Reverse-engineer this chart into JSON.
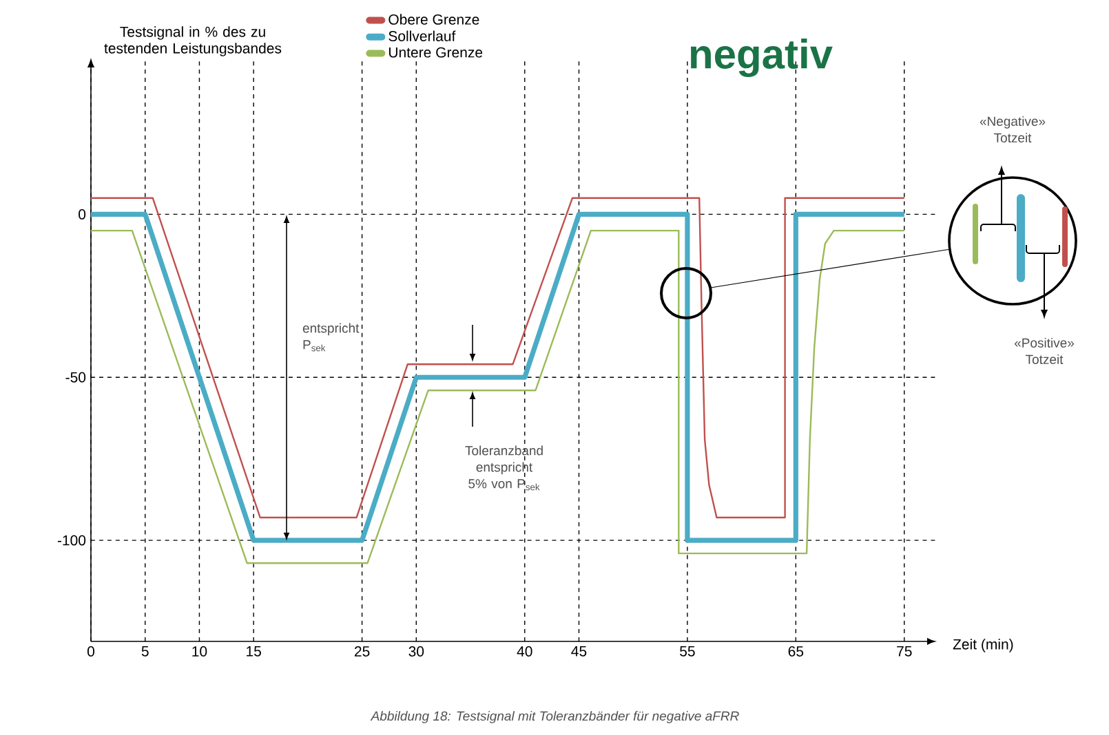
{
  "chart_data": {
    "type": "line",
    "title": "negativ",
    "xlabel": "Zeit (min)",
    "ylabel": "Testsignal in % des zu testenden Leistungsbandes",
    "xlim": [
      0,
      78
    ],
    "ylim": [
      -131,
      48
    ],
    "xticks": [
      0,
      5,
      10,
      15,
      25,
      30,
      40,
      45,
      55,
      65,
      75
    ],
    "yticks": [
      0,
      -50,
      -100
    ],
    "grid": true,
    "legend": "top",
    "series": [
      {
        "name": "Obere Grenze",
        "color": "#c0504d",
        "x": [
          0,
          5.7,
          15.6,
          24.5,
          29.2,
          38.9,
          44.4,
          56.1,
          56.3,
          56.6,
          57.0,
          57.7,
          64.0,
          64.0,
          75
        ],
        "values": [
          5,
          5,
          -93,
          -93,
          -46,
          -46,
          5,
          5,
          -27,
          -69,
          -83,
          -93,
          -93,
          5,
          5
        ]
      },
      {
        "name": "Sollverlauf",
        "color": "#4bacc6",
        "x": [
          0,
          5,
          15,
          25,
          30,
          40,
          45,
          55,
          55,
          65,
          65,
          75
        ],
        "values": [
          0,
          0,
          -100,
          -100,
          -50,
          -50,
          0,
          0,
          -100,
          -100,
          0,
          0
        ]
      },
      {
        "name": "Untere Grenze",
        "color": "#9bbb59",
        "x": [
          0,
          3.8,
          14.4,
          25.5,
          31.1,
          41,
          46.1,
          54.2,
          54.2,
          66.0,
          66.3,
          66.7,
          67.2,
          67.7,
          68.5,
          75
        ],
        "values": [
          -5,
          -5,
          -107,
          -107,
          -54,
          -54,
          -5,
          -5,
          -104,
          -104,
          -69,
          -41,
          -20,
          -9,
          -5,
          -5
        ]
      }
    ],
    "annotations": [
      "entspricht P$_{sek}$",
      "Toleranzband entspricht 5% von P$_{sek}$",
      "«Negative» Totzeit",
      "«Positive» Totzeit",
      "Abbildung 18: Testsignal mit Toleranzbänder für negative aFRR"
    ]
  }
}
